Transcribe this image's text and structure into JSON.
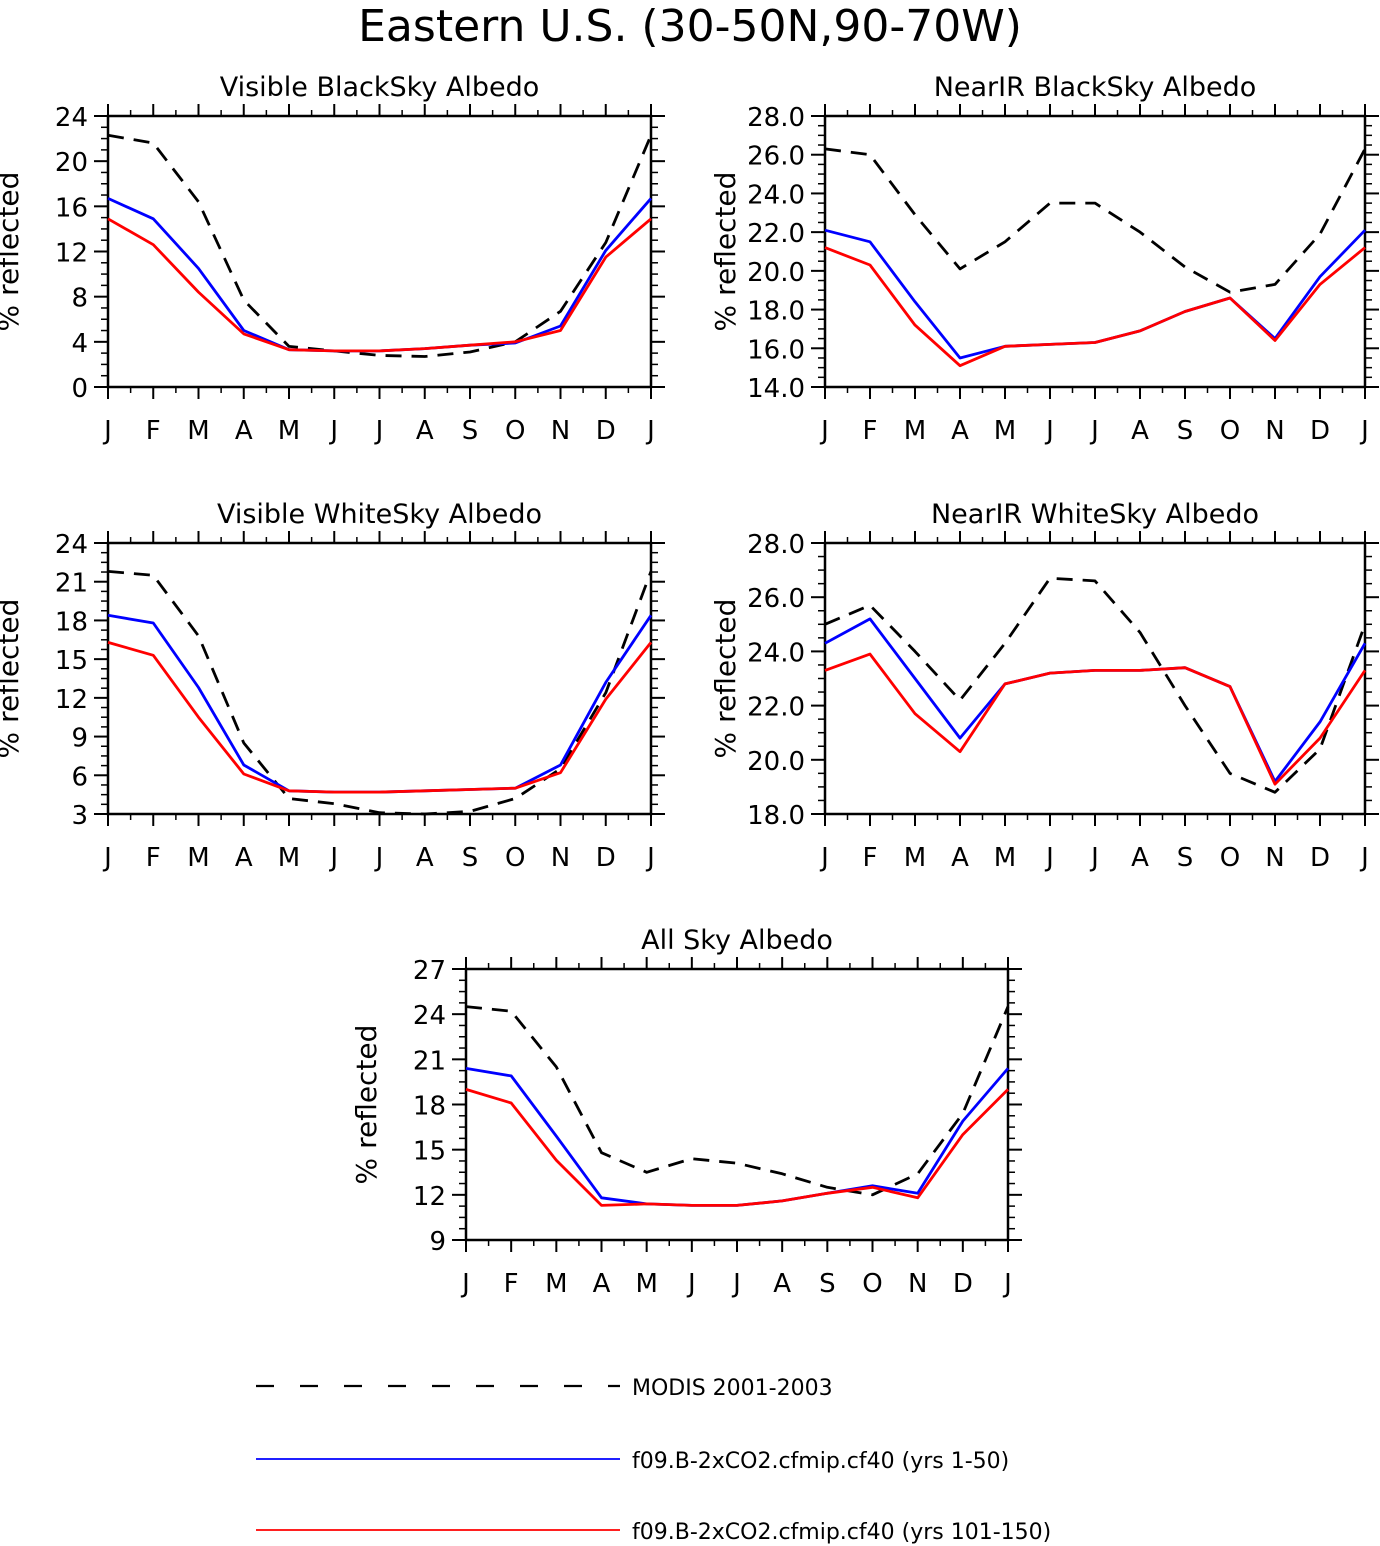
{
  "title": "Eastern U.S. (30-50N,90-70W)",
  "legend": [
    {
      "label": "MODIS 2001-2003",
      "color": "#000000",
      "dash": true
    },
    {
      "label": "f09.B-2xCO2.cfmip.cf40 (yrs 1-50)",
      "color": "#0000ff",
      "dash": false
    },
    {
      "label": "f09.B-2xCO2.cfmip.cf40 (yrs 101-150)",
      "color": "#ff0000",
      "dash": false
    }
  ],
  "chart_data": [
    {
      "type": "line",
      "title": "Visible BlackSky Albedo",
      "ylabel": "% reflected",
      "categories": [
        "J",
        "F",
        "M",
        "A",
        "M",
        "J",
        "J",
        "A",
        "S",
        "O",
        "N",
        "D",
        "J"
      ],
      "ylim": [
        0,
        24
      ],
      "yticks": [
        0,
        4,
        8,
        12,
        16,
        20,
        24
      ],
      "ytick_labels": [
        "0",
        "4",
        "8",
        "12",
        "16",
        "20",
        "24"
      ],
      "series": [
        {
          "name": "MODIS 2001-2003",
          "color": "#000000",
          "dash": true,
          "values": [
            22.3,
            21.6,
            16.4,
            7.7,
            3.6,
            3.2,
            2.8,
            2.7,
            3.1,
            4.0,
            6.7,
            12.8,
            22.3
          ]
        },
        {
          "name": "f09.B-2xCO2.cfmip.cf40 (yrs 1-50)",
          "color": "#0000ff",
          "dash": false,
          "values": [
            16.7,
            14.9,
            10.5,
            5.0,
            3.3,
            3.2,
            3.2,
            3.4,
            3.7,
            3.9,
            5.4,
            12.1,
            16.7
          ]
        },
        {
          "name": "f09.B-2xCO2.cfmip.cf40 (yrs 101-150)",
          "color": "#ff0000",
          "dash": false,
          "values": [
            14.9,
            12.6,
            8.4,
            4.7,
            3.3,
            3.2,
            3.2,
            3.4,
            3.7,
            4.0,
            5.0,
            11.5,
            14.9
          ]
        }
      ]
    },
    {
      "type": "line",
      "title": "NearIR BlackSky Albedo",
      "ylabel": "% reflected",
      "categories": [
        "J",
        "F",
        "M",
        "A",
        "M",
        "J",
        "J",
        "A",
        "S",
        "O",
        "N",
        "D",
        "J"
      ],
      "ylim": [
        14,
        28
      ],
      "yticks": [
        14,
        16,
        18,
        20,
        22,
        24,
        26,
        28
      ],
      "ytick_labels": [
        "14.0",
        "16.0",
        "18.0",
        "20.0",
        "22.0",
        "24.0",
        "26.0",
        "28.0"
      ],
      "series": [
        {
          "name": "MODIS 2001-2003",
          "color": "#000000",
          "dash": true,
          "values": [
            26.3,
            26.0,
            22.9,
            20.1,
            21.5,
            23.5,
            23.5,
            22.0,
            20.2,
            18.9,
            19.3,
            21.9,
            26.3
          ]
        },
        {
          "name": "f09.B-2xCO2.cfmip.cf40 (yrs 1-50)",
          "color": "#0000ff",
          "dash": false,
          "values": [
            22.1,
            21.5,
            18.4,
            15.5,
            16.1,
            16.2,
            16.3,
            16.9,
            17.9,
            18.6,
            16.5,
            19.7,
            22.1
          ]
        },
        {
          "name": "f09.B-2xCO2.cfmip.cf40 (yrs 101-150)",
          "color": "#ff0000",
          "dash": false,
          "values": [
            21.2,
            20.3,
            17.2,
            15.1,
            16.1,
            16.2,
            16.3,
            16.9,
            17.9,
            18.6,
            16.4,
            19.3,
            21.2
          ]
        }
      ]
    },
    {
      "type": "line",
      "title": "Visible WhiteSky Albedo",
      "ylabel": "% reflected",
      "categories": [
        "J",
        "F",
        "M",
        "A",
        "M",
        "J",
        "J",
        "A",
        "S",
        "O",
        "N",
        "D",
        "J"
      ],
      "ylim": [
        3,
        24
      ],
      "yticks": [
        3,
        6,
        9,
        12,
        15,
        18,
        21,
        24
      ],
      "ytick_labels": [
        "3",
        "6",
        "9",
        "12",
        "15",
        "18",
        "21",
        "24"
      ],
      "series": [
        {
          "name": "MODIS 2001-2003",
          "color": "#000000",
          "dash": true,
          "values": [
            21.8,
            21.5,
            16.8,
            8.5,
            4.2,
            3.8,
            3.1,
            3.0,
            3.2,
            4.2,
            6.5,
            12.4,
            21.8
          ]
        },
        {
          "name": "f09.B-2xCO2.cfmip.cf40 (yrs 1-50)",
          "color": "#0000ff",
          "dash": false,
          "values": [
            18.4,
            17.8,
            12.8,
            6.8,
            4.8,
            4.7,
            4.7,
            4.8,
            4.9,
            5.0,
            6.8,
            13.2,
            18.4
          ]
        },
        {
          "name": "f09.B-2xCO2.cfmip.cf40 (yrs 101-150)",
          "color": "#ff0000",
          "dash": false,
          "values": [
            16.3,
            15.3,
            10.5,
            6.1,
            4.8,
            4.7,
            4.7,
            4.8,
            4.9,
            5.0,
            6.2,
            11.9,
            16.3
          ]
        }
      ]
    },
    {
      "type": "line",
      "title": "NearIR WhiteSky Albedo",
      "ylabel": "% reflected",
      "categories": [
        "J",
        "F",
        "M",
        "A",
        "M",
        "J",
        "J",
        "A",
        "S",
        "O",
        "N",
        "D",
        "J"
      ],
      "ylim": [
        18,
        28
      ],
      "yticks": [
        18,
        20,
        22,
        24,
        26,
        28
      ],
      "ytick_labels": [
        "18.0",
        "20.0",
        "22.0",
        "24.0",
        "26.0",
        "28.0"
      ],
      "series": [
        {
          "name": "MODIS 2001-2003",
          "color": "#000000",
          "dash": true,
          "values": [
            25.0,
            25.7,
            24.0,
            22.2,
            24.3,
            26.7,
            26.6,
            24.7,
            22.0,
            19.5,
            18.8,
            20.4,
            25.0
          ]
        },
        {
          "name": "f09.B-2xCO2.cfmip.cf40 (yrs 1-50)",
          "color": "#0000ff",
          "dash": false,
          "values": [
            24.3,
            25.2,
            23.0,
            20.8,
            22.8,
            23.2,
            23.3,
            23.3,
            23.4,
            22.7,
            19.2,
            21.4,
            24.3
          ]
        },
        {
          "name": "f09.B-2xCO2.cfmip.cf40 (yrs 101-150)",
          "color": "#ff0000",
          "dash": false,
          "values": [
            23.3,
            23.9,
            21.7,
            20.3,
            22.8,
            23.2,
            23.3,
            23.3,
            23.4,
            22.7,
            19.1,
            20.8,
            23.3
          ]
        }
      ]
    },
    {
      "type": "line",
      "title": "All Sky Albedo",
      "ylabel": "% reflected",
      "categories": [
        "J",
        "F",
        "M",
        "A",
        "M",
        "J",
        "J",
        "A",
        "S",
        "O",
        "N",
        "D",
        "J"
      ],
      "ylim": [
        9,
        27
      ],
      "yticks": [
        9,
        12,
        15,
        18,
        21,
        24,
        27
      ],
      "ytick_labels": [
        "9",
        "12",
        "15",
        "18",
        "21",
        "24",
        "27"
      ],
      "series": [
        {
          "name": "MODIS 2001-2003",
          "color": "#000000",
          "dash": true,
          "values": [
            24.5,
            24.2,
            20.5,
            14.8,
            13.5,
            14.4,
            14.1,
            13.4,
            12.5,
            12.0,
            13.4,
            17.4,
            24.5
          ]
        },
        {
          "name": "f09.B-2xCO2.cfmip.cf40 (yrs 1-50)",
          "color": "#0000ff",
          "dash": false,
          "values": [
            20.4,
            19.9,
            15.9,
            11.8,
            11.4,
            11.3,
            11.3,
            11.6,
            12.1,
            12.6,
            12.1,
            16.9,
            20.4
          ]
        },
        {
          "name": "f09.B-2xCO2.cfmip.cf40 (yrs 101-150)",
          "color": "#ff0000",
          "dash": false,
          "values": [
            19.0,
            18.1,
            14.3,
            11.3,
            11.4,
            11.3,
            11.3,
            11.6,
            12.1,
            12.5,
            11.8,
            16.0,
            19.0
          ]
        }
      ]
    }
  ]
}
